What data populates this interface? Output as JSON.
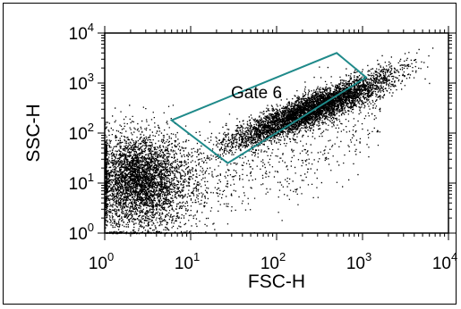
{
  "chart_data": {
    "type": "scatter",
    "xlabel": "FSC-H",
    "ylabel": "SSC-H",
    "xscale": "log",
    "yscale": "log",
    "xlim": [
      1,
      10000
    ],
    "ylim": [
      1,
      10000
    ],
    "x_ticks": [
      {
        "base": "10",
        "exp": "0",
        "value": 1
      },
      {
        "base": "10",
        "exp": "1",
        "value": 10
      },
      {
        "base": "10",
        "exp": "2",
        "value": 100
      },
      {
        "base": "10",
        "exp": "3",
        "value": 1000
      },
      {
        "base": "10",
        "exp": "4",
        "value": 10000
      }
    ],
    "y_ticks": [
      {
        "base": "10",
        "exp": "0",
        "value": 1
      },
      {
        "base": "10",
        "exp": "1",
        "value": 10
      },
      {
        "base": "10",
        "exp": "2",
        "value": 100
      },
      {
        "base": "10",
        "exp": "3",
        "value": 1000
      },
      {
        "base": "10",
        "exp": "4",
        "value": 10000
      }
    ],
    "point_color": "#000000",
    "populations": [
      {
        "center_x": 2.5,
        "center_y": 12,
        "density": "very high"
      },
      {
        "center_x": 250,
        "center_y": 300,
        "density": "high"
      }
    ],
    "gate": {
      "label": "Gate 6",
      "color": "#1f8a8a",
      "vertices": [
        [
          6,
          180
        ],
        [
          500,
          4000
        ],
        [
          1100,
          1300
        ],
        [
          27,
          25
        ]
      ]
    }
  }
}
